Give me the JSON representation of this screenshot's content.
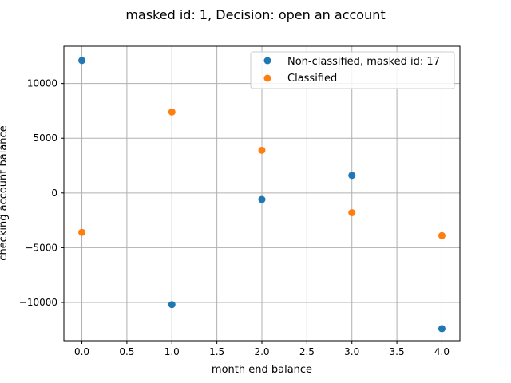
{
  "chart_data": {
    "type": "scatter",
    "title": "masked id: 1, Decision: open an account",
    "xlabel": "month end balance",
    "ylabel": "checking account balance",
    "xlim": [
      -0.2,
      4.2
    ],
    "ylim": [
      -13500,
      13400
    ],
    "xticks": [
      0.0,
      0.5,
      1.0,
      1.5,
      2.0,
      2.5,
      3.0,
      3.5,
      4.0
    ],
    "xtick_labels": [
      "0.0",
      "0.5",
      "1.0",
      "1.5",
      "2.0",
      "2.5",
      "3.0",
      "3.5",
      "4.0"
    ],
    "yticks": [
      -10000,
      -5000,
      0,
      5000,
      10000
    ],
    "ytick_labels": [
      "−10000",
      "−5000",
      "0",
      "5000",
      "10000"
    ],
    "grid": true,
    "legend_position": "top-right",
    "series": [
      {
        "name": "Non-classified, masked id: 17",
        "color": "#1f77b4",
        "x": [
          0,
          1,
          2,
          3,
          4
        ],
        "y": [
          12100,
          -10200,
          -600,
          1600,
          -12400
        ]
      },
      {
        "name": "Classified",
        "color": "#ff7f0e",
        "x": [
          0,
          1,
          2,
          3,
          4
        ],
        "y": [
          -3600,
          7400,
          3900,
          -1800,
          -3900
        ]
      }
    ]
  }
}
